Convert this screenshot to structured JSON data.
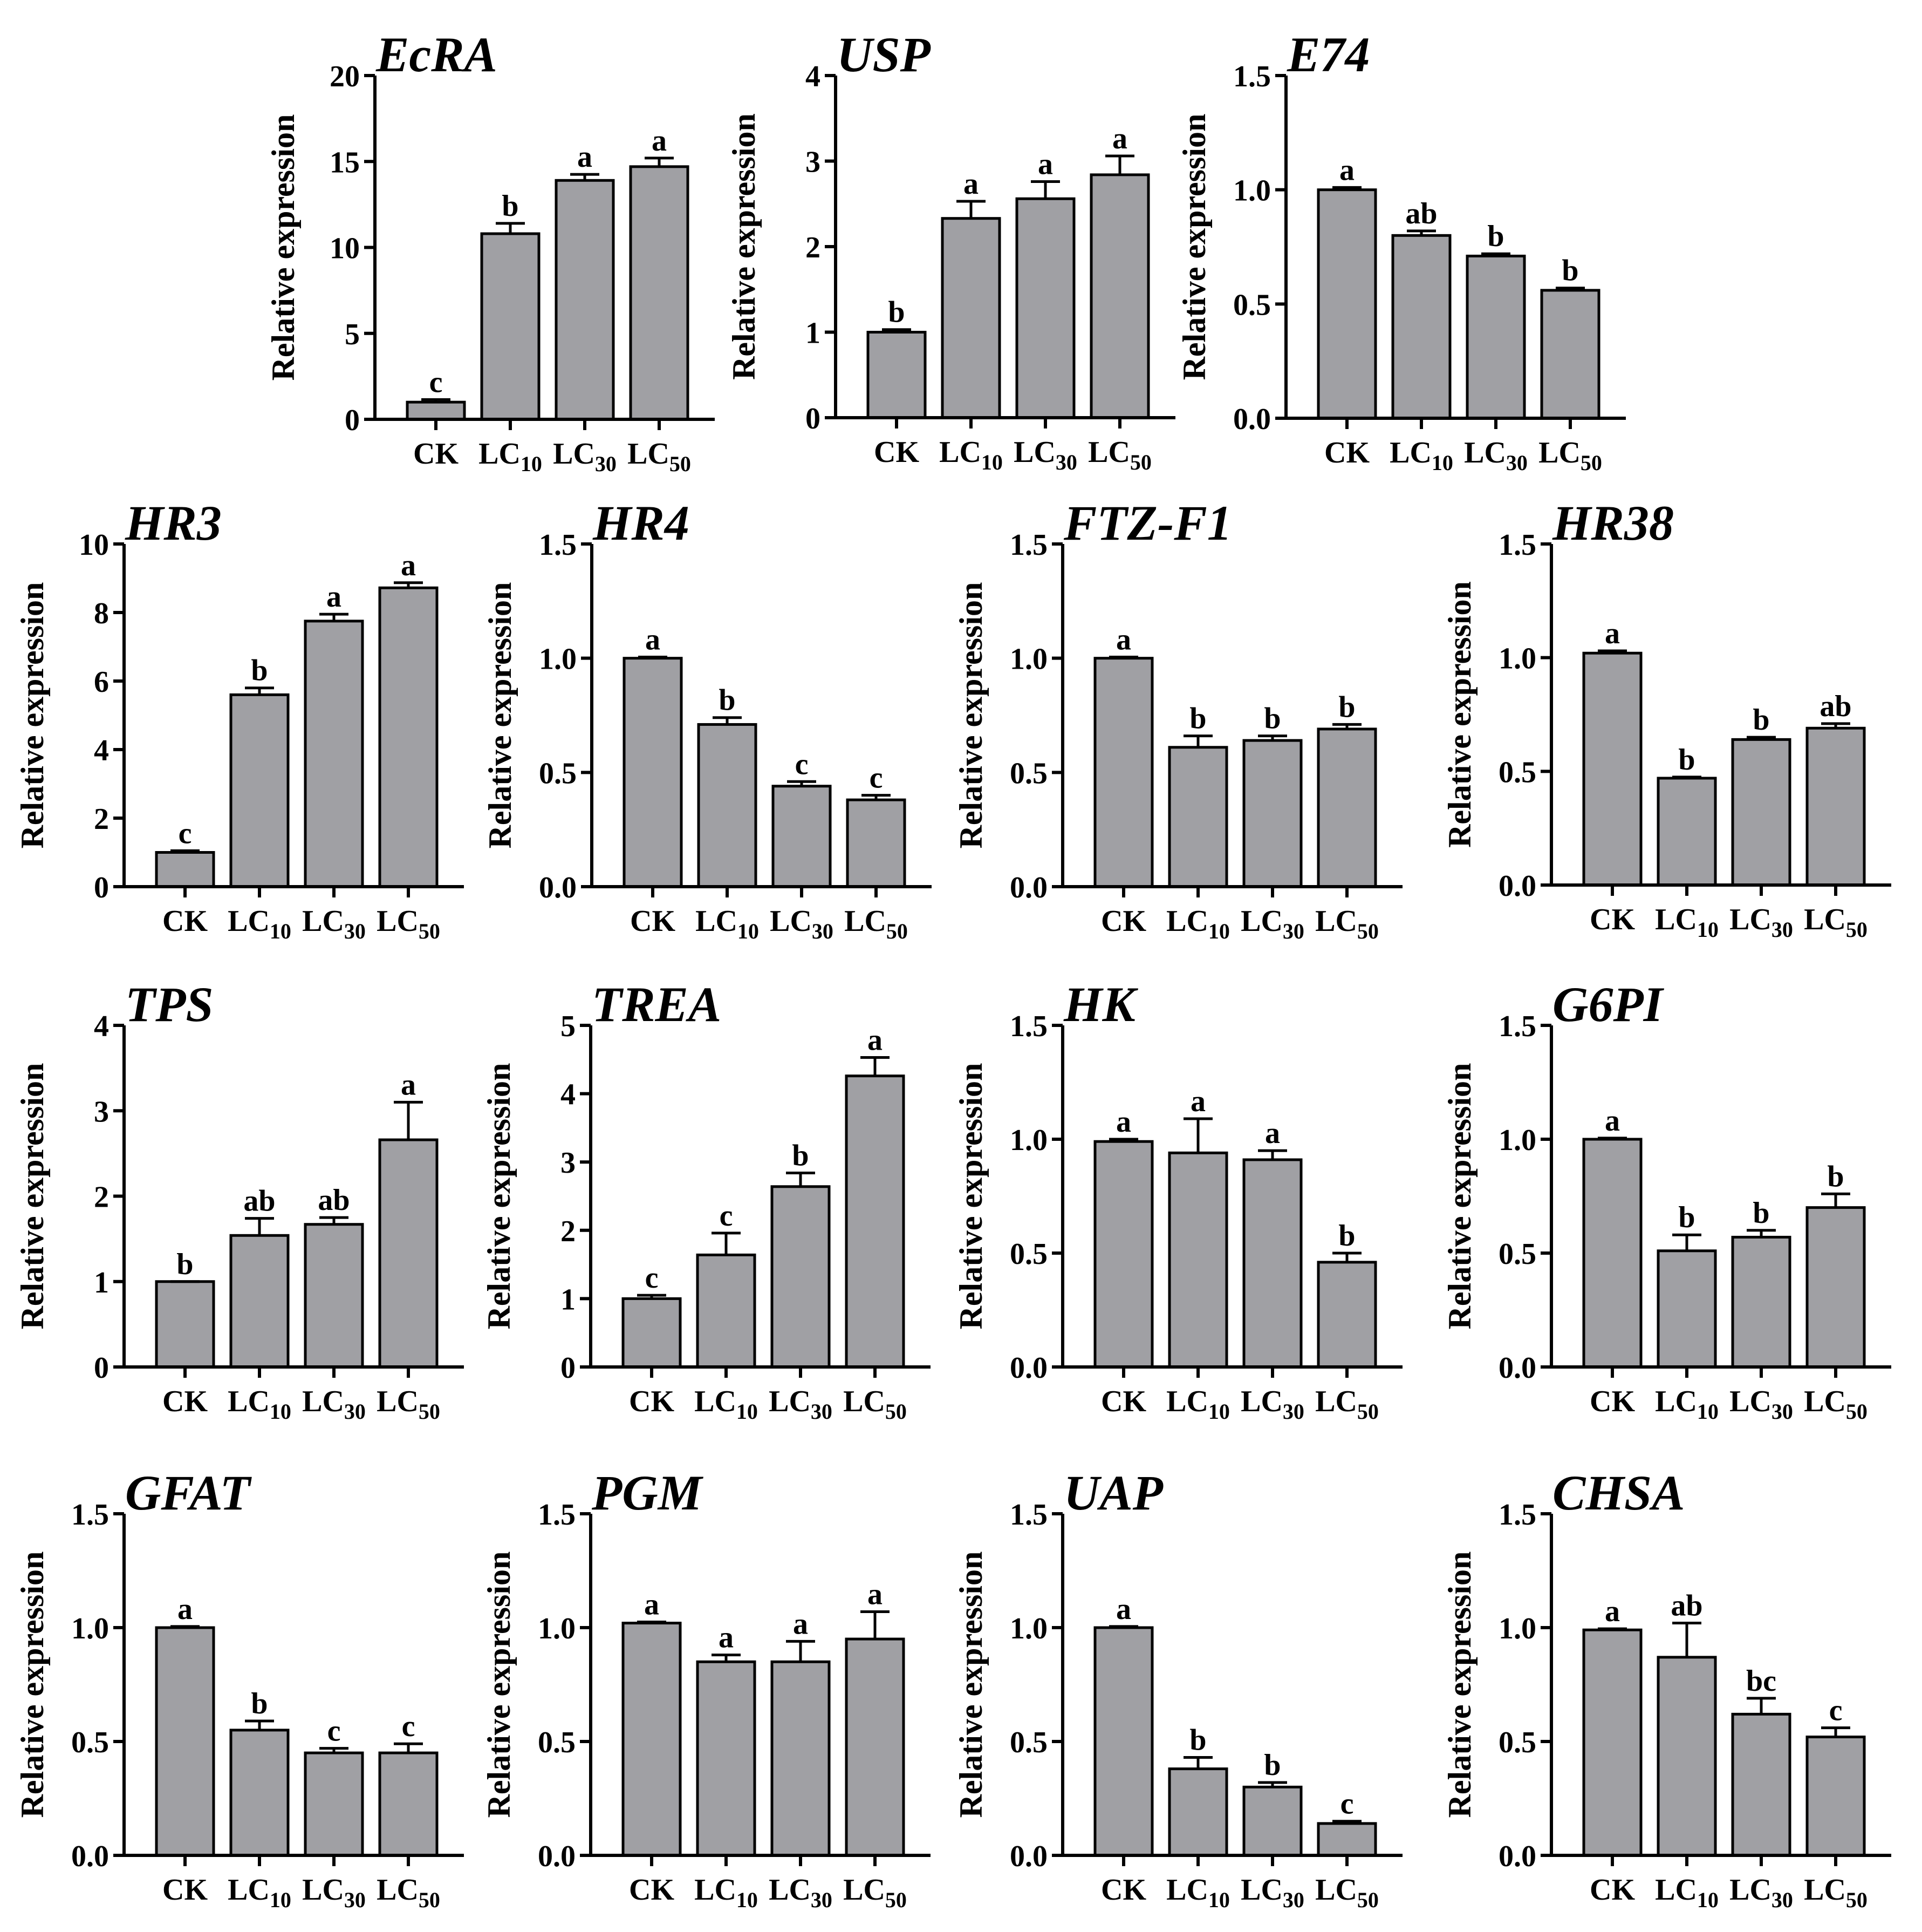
{
  "figure": {
    "categories": [
      {
        "main": "CK",
        "sub": ""
      },
      {
        "main": "LC",
        "sub": "10"
      },
      {
        "main": "LC",
        "sub": "30"
      },
      {
        "main": "LC",
        "sub": "50"
      }
    ],
    "bar_color": "#a0a0a4",
    "axis_color": "#000000"
  },
  "chart_data": [
    {
      "type": "bar",
      "title": "EcRA",
      "ylabel": "Relative expression",
      "ylim": [
        0,
        20
      ],
      "yticks": [
        "0",
        "5",
        "10",
        "15",
        "20"
      ],
      "categories": [
        "CK",
        "LC10",
        "LC30",
        "LC50"
      ],
      "values": [
        1.0,
        10.8,
        13.9,
        14.7
      ],
      "errors": [
        0.15,
        0.6,
        0.35,
        0.5
      ],
      "letters": [
        "c",
        "b",
        "a",
        "a"
      ]
    },
    {
      "type": "bar",
      "title": "USP",
      "ylabel": "Relative expression",
      "ylim": [
        0,
        4
      ],
      "yticks": [
        "0",
        "1",
        "2",
        "3",
        "4"
      ],
      "categories": [
        "CK",
        "LC10",
        "LC30",
        "LC50"
      ],
      "values": [
        1.0,
        2.33,
        2.56,
        2.84
      ],
      "errors": [
        0.03,
        0.2,
        0.2,
        0.22
      ],
      "letters": [
        "b",
        "a",
        "a",
        "a"
      ]
    },
    {
      "type": "bar",
      "title": "E74",
      "ylabel": "Relative expression",
      "ylim": [
        0,
        1.5
      ],
      "yticks": [
        "0.0",
        "0.5",
        "1.0",
        "1.5"
      ],
      "categories": [
        "CK",
        "LC10",
        "LC30",
        "LC50"
      ],
      "values": [
        1.0,
        0.8,
        0.71,
        0.56
      ],
      "errors": [
        0.01,
        0.02,
        0.01,
        0.01
      ],
      "letters": [
        "a",
        "ab",
        "b",
        "b"
      ]
    },
    {
      "type": "bar",
      "title": "HR3",
      "ylabel": "Relative expression",
      "ylim": [
        0,
        10
      ],
      "yticks": [
        "0",
        "2",
        "4",
        "6",
        "8",
        "10"
      ],
      "categories": [
        "CK",
        "LC10",
        "LC30",
        "LC50"
      ],
      "values": [
        1.0,
        5.6,
        7.75,
        8.72
      ],
      "errors": [
        0.05,
        0.2,
        0.2,
        0.15
      ],
      "letters": [
        "c",
        "b",
        "a",
        "a"
      ]
    },
    {
      "type": "bar",
      "title": "HR4",
      "ylabel": "Relative expression",
      "ylim": [
        0,
        1.5
      ],
      "yticks": [
        "0.0",
        "0.5",
        "1.0",
        "1.5"
      ],
      "categories": [
        "CK",
        "LC10",
        "LC30",
        "LC50"
      ],
      "values": [
        1.0,
        0.71,
        0.44,
        0.38
      ],
      "errors": [
        0.005,
        0.03,
        0.02,
        0.02
      ],
      "letters": [
        "a",
        "b",
        "c",
        "c"
      ]
    },
    {
      "type": "bar",
      "title": "FTZ-F1",
      "ylabel": "Relative expression",
      "ylim": [
        0,
        1.5
      ],
      "yticks": [
        "0.0",
        "0.5",
        "1.0",
        "1.5"
      ],
      "categories": [
        "CK",
        "LC10",
        "LC30",
        "LC50"
      ],
      "values": [
        1.0,
        0.61,
        0.64,
        0.69
      ],
      "errors": [
        0.005,
        0.05,
        0.02,
        0.02
      ],
      "letters": [
        "a",
        "b",
        "b",
        "b"
      ]
    },
    {
      "type": "bar",
      "title": "HR38",
      "ylabel": "Relative expression",
      "ylim": [
        0,
        1.5
      ],
      "yticks": [
        "0.0",
        "0.5",
        "1.0",
        "1.5"
      ],
      "categories": [
        "CK",
        "LC10",
        "LC30",
        "LC50"
      ],
      "values": [
        1.02,
        0.47,
        0.64,
        0.69
      ],
      "errors": [
        0.01,
        0.005,
        0.01,
        0.02
      ],
      "letters": [
        "a",
        "b",
        "b",
        "ab"
      ]
    },
    {
      "type": "bar",
      "title": "TPS",
      "ylabel": "Relative expression",
      "ylim": [
        0,
        4
      ],
      "yticks": [
        "0",
        "1",
        "2",
        "3",
        "4"
      ],
      "categories": [
        "CK",
        "LC10",
        "LC30",
        "LC50"
      ],
      "values": [
        1.0,
        1.54,
        1.67,
        2.66
      ],
      "errors": [
        0.0,
        0.2,
        0.08,
        0.44
      ],
      "letters": [
        "b",
        "ab",
        "ab",
        "a"
      ]
    },
    {
      "type": "bar",
      "title": "TREA",
      "ylabel": "Relative expression",
      "ylim": [
        0,
        5
      ],
      "yticks": [
        "0",
        "1",
        "2",
        "3",
        "4",
        "5"
      ],
      "categories": [
        "CK",
        "LC10",
        "LC30",
        "LC50"
      ],
      "values": [
        1.0,
        1.64,
        2.64,
        4.26
      ],
      "errors": [
        0.05,
        0.32,
        0.2,
        0.27
      ],
      "letters": [
        "c",
        "c",
        "b",
        "a"
      ]
    },
    {
      "type": "bar",
      "title": "HK",
      "ylabel": "Relative expression",
      "ylim": [
        0,
        1.5
      ],
      "yticks": [
        "0.0",
        "0.5",
        "1.0",
        "1.5"
      ],
      "categories": [
        "CK",
        "LC10",
        "LC30",
        "LC50"
      ],
      "values": [
        0.99,
        0.94,
        0.91,
        0.46
      ],
      "errors": [
        0.01,
        0.15,
        0.04,
        0.04
      ],
      "letters": [
        "a",
        "a",
        "a",
        "b"
      ]
    },
    {
      "type": "bar",
      "title": "G6PI",
      "ylabel": "Relative expression",
      "ylim": [
        0,
        1.5
      ],
      "yticks": [
        "0.0",
        "0.5",
        "1.0",
        "1.5"
      ],
      "categories": [
        "CK",
        "LC10",
        "LC30",
        "LC50"
      ],
      "values": [
        1.0,
        0.51,
        0.57,
        0.7
      ],
      "errors": [
        0.005,
        0.07,
        0.03,
        0.06
      ],
      "letters": [
        "a",
        "b",
        "b",
        "b"
      ]
    },
    {
      "type": "bar",
      "title": "GFAT",
      "ylabel": "Relative expression",
      "ylim": [
        0,
        1.5
      ],
      "yticks": [
        "0.0",
        "0.5",
        "1.0",
        "1.5"
      ],
      "categories": [
        "CK",
        "LC10",
        "LC30",
        "LC50"
      ],
      "values": [
        1.0,
        0.55,
        0.45,
        0.45
      ],
      "errors": [
        0.005,
        0.04,
        0.02,
        0.04
      ],
      "letters": [
        "a",
        "b",
        "c",
        "c"
      ]
    },
    {
      "type": "bar",
      "title": "PGM",
      "ylabel": "Relative expression",
      "ylim": [
        0,
        1.5
      ],
      "yticks": [
        "0.0",
        "0.5",
        "1.0",
        "1.5"
      ],
      "categories": [
        "CK",
        "LC10",
        "LC30",
        "LC50"
      ],
      "values": [
        1.02,
        0.85,
        0.85,
        0.95
      ],
      "errors": [
        0.005,
        0.03,
        0.09,
        0.12
      ],
      "letters": [
        "a",
        "a",
        "a",
        "a"
      ]
    },
    {
      "type": "bar",
      "title": "UAP",
      "ylabel": "Relative expression",
      "ylim": [
        0,
        1.5
      ],
      "yticks": [
        "0.0",
        "0.5",
        "1.0",
        "1.5"
      ],
      "categories": [
        "CK",
        "LC10",
        "LC30",
        "LC50"
      ],
      "values": [
        1.0,
        0.38,
        0.3,
        0.14
      ],
      "errors": [
        0.005,
        0.05,
        0.02,
        0.01
      ],
      "letters": [
        "a",
        "b",
        "b",
        "c"
      ]
    },
    {
      "type": "bar",
      "title": "CHSA",
      "ylabel": "Relative expression",
      "ylim": [
        0,
        1.5
      ],
      "yticks": [
        "0.0",
        "0.5",
        "1.0",
        "1.5"
      ],
      "categories": [
        "CK",
        "LC10",
        "LC30",
        "LC50"
      ],
      "values": [
        0.99,
        0.87,
        0.62,
        0.52
      ],
      "errors": [
        0.005,
        0.15,
        0.07,
        0.04
      ],
      "letters": [
        "a",
        "ab",
        "bc",
        "c"
      ]
    }
  ]
}
